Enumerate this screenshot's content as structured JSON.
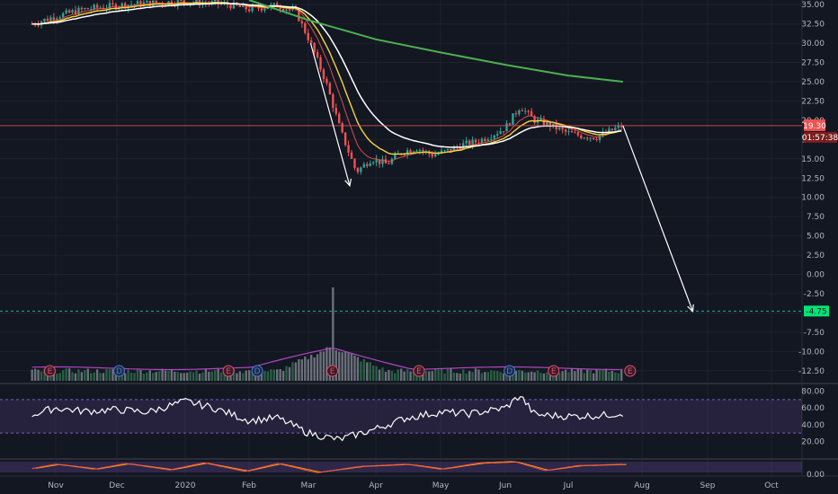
{
  "chart_data": {
    "type": "candlestick",
    "theme": {
      "background": "#131722",
      "grid": "#1e222d",
      "axis_text": "#b2b5be",
      "up": "#26a69a",
      "down": "#ef5350",
      "ema_fast": "#ef5350",
      "ema_mid": "#f5d33a",
      "sma_slow": "#ffffff",
      "sma_long": "#4caf50",
      "volume_ma": "#b146c2",
      "rsi_band": "#7e57c2"
    },
    "x_labels": [
      "Nov",
      "Dec",
      "2020",
      "Feb",
      "Mar",
      "Apr",
      "May",
      "Jun",
      "Jul",
      "Aug",
      "Sep",
      "Oct"
    ],
    "price_axis": {
      "ticks": [
        "35.00",
        "32.50",
        "30.00",
        "27.50",
        "25.00",
        "22.50",
        "20.00",
        "17.50",
        "15.00",
        "12.50",
        "10.00",
        "7.50",
        "5.00",
        "2.50",
        "0.00",
        "-2.50",
        "-5.00",
        "-7.50",
        "-10.00",
        "-12.50"
      ],
      "range": [
        -13.8,
        35.6
      ]
    },
    "price_series": [
      {
        "date": "Oct-20",
        "close": 32.5
      },
      {
        "date": "Nov-01",
        "close": 33.5
      },
      {
        "date": "Nov-15",
        "close": 34.4
      },
      {
        "date": "Dec-01",
        "close": 34.9
      },
      {
        "date": "Dec-15",
        "close": 35.2
      },
      {
        "date": "Jan-01",
        "close": 35.4
      },
      {
        "date": "Jan-20",
        "close": 35.1
      },
      {
        "date": "Feb-01",
        "close": 34.4
      },
      {
        "date": "Feb-15",
        "close": 34.9
      },
      {
        "date": "Feb-24",
        "close": 34.0
      },
      {
        "date": "Mar-02",
        "close": 30.0
      },
      {
        "date": "Mar-09",
        "close": 25.0
      },
      {
        "date": "Mar-16",
        "close": 18.5
      },
      {
        "date": "Mar-23",
        "close": 13.3
      },
      {
        "date": "Mar-30",
        "close": 15.0
      },
      {
        "date": "Apr-06",
        "close": 14.3
      },
      {
        "date": "Apr-13",
        "close": 15.9
      },
      {
        "date": "Apr-20",
        "close": 16.4
      },
      {
        "date": "Apr-27",
        "close": 15.5
      },
      {
        "date": "May-04",
        "close": 16.0
      },
      {
        "date": "May-11",
        "close": 16.8
      },
      {
        "date": "May-18",
        "close": 17.2
      },
      {
        "date": "May-25",
        "close": 18.0
      },
      {
        "date": "Jun-01",
        "close": 19.0
      },
      {
        "date": "Jun-08",
        "close": 21.8
      },
      {
        "date": "Jun-15",
        "close": 20.0
      },
      {
        "date": "Jun-22",
        "close": 19.4
      },
      {
        "date": "Jun-29",
        "close": 18.5
      },
      {
        "date": "Jul-06",
        "close": 18.0
      },
      {
        "date": "Jul-13",
        "close": 17.8
      },
      {
        "date": "Jul-20",
        "close": 18.8
      },
      {
        "date": "Jul-24",
        "close": 19.3
      }
    ],
    "sma_long": [
      {
        "date": "Feb-01",
        "value": 35.6
      },
      {
        "date": "Mar-01",
        "value": 33.0
      },
      {
        "date": "Apr-01",
        "value": 30.5
      },
      {
        "date": "May-01",
        "value": 28.8
      },
      {
        "date": "Jun-01",
        "value": 27.2
      },
      {
        "date": "Jul-01",
        "value": 25.8
      },
      {
        "date": "Jul-24",
        "value": 25.0
      }
    ],
    "last_price": {
      "label": "19.30",
      "countdown": "01:57:38",
      "color": "#ef5350"
    },
    "target_level": {
      "label": "-4.75",
      "value": -4.75,
      "color": "#22ab94"
    },
    "projection": {
      "from_date": "Jul-24",
      "from_value": 19.3,
      "to_date": "Aug-25",
      "to_value": -4.8
    },
    "march_arrow": {
      "from_date": "Mar-02",
      "from_value": 30.0,
      "to_date": "Mar-20",
      "to_value": 11.5
    },
    "volume": {
      "peak_date": "Mar-12",
      "markers": [
        {
          "date": "Oct-29",
          "letter": "E",
          "kind": "earnings"
        },
        {
          "date": "Dec-02",
          "letter": "D",
          "kind": "dividend"
        },
        {
          "date": "Jan-22",
          "letter": "E",
          "kind": "earnings"
        },
        {
          "date": "Feb-05",
          "letter": "D",
          "kind": "dividend"
        },
        {
          "date": "Mar-12",
          "letter": "E",
          "kind": "earnings"
        },
        {
          "date": "Apr-21",
          "letter": "E",
          "kind": "earnings"
        },
        {
          "date": "Jun-03",
          "letter": "D",
          "kind": "dividend"
        },
        {
          "date": "Jun-24",
          "letter": "E",
          "kind": "earnings"
        },
        {
          "date": "Jul-27",
          "letter": "E",
          "kind": "earnings"
        }
      ]
    },
    "rsi": {
      "ticks": [
        "80.00",
        "60.00",
        "40.00",
        "20.00"
      ],
      "range": [
        0,
        86
      ],
      "bands": [
        30,
        70
      ],
      "series": [
        {
          "date": "Oct-20",
          "value": 52
        },
        {
          "date": "Nov-01",
          "value": 60
        },
        {
          "date": "Nov-15",
          "value": 56
        },
        {
          "date": "Dec-01",
          "value": 58
        },
        {
          "date": "Dec-15",
          "value": 55
        },
        {
          "date": "Jan-01",
          "value": 68
        },
        {
          "date": "Jan-15",
          "value": 60
        },
        {
          "date": "Feb-01",
          "value": 45
        },
        {
          "date": "Feb-15",
          "value": 48
        },
        {
          "date": "Mar-01",
          "value": 30
        },
        {
          "date": "Mar-15",
          "value": 22
        },
        {
          "date": "Apr-01",
          "value": 35
        },
        {
          "date": "Apr-15",
          "value": 48
        },
        {
          "date": "May-01",
          "value": 55
        },
        {
          "date": "May-15",
          "value": 53
        },
        {
          "date": "Jun-01",
          "value": 60
        },
        {
          "date": "Jun-08",
          "value": 75
        },
        {
          "date": "Jun-15",
          "value": 52
        },
        {
          "date": "Jul-01",
          "value": 50
        },
        {
          "date": "Jul-15",
          "value": 51
        },
        {
          "date": "Jul-24",
          "value": 54
        }
      ]
    },
    "stoch": {
      "tick": "0.00",
      "series": [
        {
          "date": "Oct-20",
          "value": 40
        },
        {
          "date": "Nov-01",
          "value": 70
        },
        {
          "date": "Nov-20",
          "value": 35
        },
        {
          "date": "Dec-05",
          "value": 75
        },
        {
          "date": "Dec-25",
          "value": 30
        },
        {
          "date": "Jan-10",
          "value": 80
        },
        {
          "date": "Jan-30",
          "value": 20
        },
        {
          "date": "Feb-15",
          "value": 75
        },
        {
          "date": "Mar-05",
          "value": 10
        },
        {
          "date": "Mar-25",
          "value": 55
        },
        {
          "date": "Apr-15",
          "value": 70
        },
        {
          "date": "May-01",
          "value": 35
        },
        {
          "date": "May-20",
          "value": 80
        },
        {
          "date": "Jun-05",
          "value": 90
        },
        {
          "date": "Jun-20",
          "value": 25
        },
        {
          "date": "Jul-05",
          "value": 60
        },
        {
          "date": "Jul-24",
          "value": 70
        }
      ]
    }
  }
}
